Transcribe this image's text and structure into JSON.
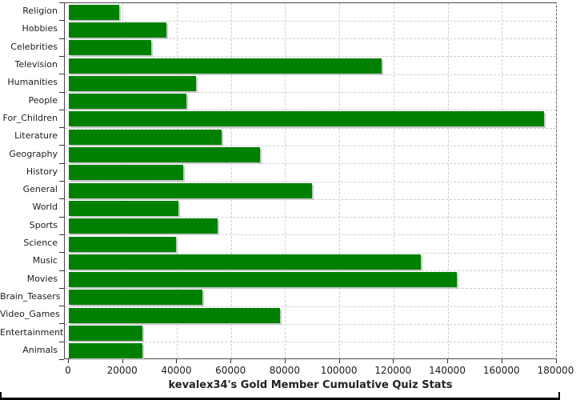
{
  "chart_data": {
    "type": "bar",
    "orientation": "horizontal",
    "title": "",
    "xlabel": "kevalex34's Gold Member Cumulative Quiz Stats",
    "ylabel": "",
    "categories": [
      "Religion",
      "Hobbies",
      "Celebrities",
      "Television",
      "Humanities",
      "People",
      "For_Children",
      "Literature",
      "Geography",
      "History",
      "General",
      "World",
      "Sports",
      "Science",
      "Music",
      "Movies",
      "Brain_Teasers",
      "Video_Games",
      "Entertainment",
      "Animals"
    ],
    "values": [
      18700,
      36100,
      30300,
      115500,
      47000,
      43300,
      175500,
      56400,
      70700,
      42300,
      89900,
      40500,
      55000,
      39600,
      130000,
      143300,
      49300,
      78100,
      27200,
      27100
    ],
    "xlim": [
      0,
      180000
    ],
    "xticks": [
      0,
      20000,
      40000,
      60000,
      80000,
      100000,
      120000,
      140000,
      160000,
      180000
    ],
    "grid": true,
    "legend": "none",
    "bar_color": "#008000",
    "shadow_color": "#c9c9c9",
    "gridline_color": "#cfcfcf",
    "axis_color": "#4a4a4a"
  }
}
